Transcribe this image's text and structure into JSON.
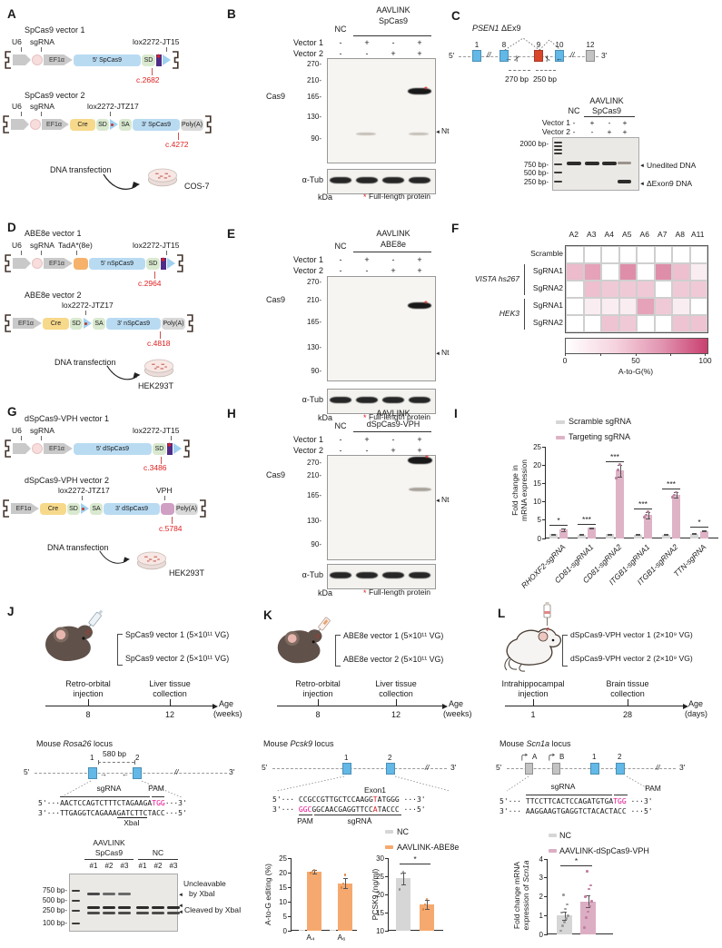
{
  "A": {
    "label": "A",
    "v1_title": "SpCas9 vector 1",
    "v2_title": "SpCas9 vector 2",
    "u6": "U6",
    "sgrna": "sgRNA",
    "ef1a": "EF1α",
    "lox1": "lox2272-JT15",
    "lox2": "lox2272-JTZ17",
    "gene5": "5' SpCas9",
    "gene3": "3' SpCas9",
    "sd": "SD",
    "sa": "SA",
    "cre": "Cre",
    "polya": "Poly(A)",
    "variant1": "c.2682",
    "variant2": "c.4272",
    "transfection": "DNA transfection",
    "cell": "COS-7"
  },
  "B": {
    "label": "B",
    "nc": "NC",
    "treat_line1": "AAVLINK",
    "treat_line2": "SpCas9",
    "v1": "Vector 1",
    "v2": "Vector 2",
    "v1_signs": [
      "-",
      "+",
      "-",
      "+"
    ],
    "v2_signs": [
      "-",
      "-",
      "+",
      "+"
    ],
    "ladder": [
      "270",
      "210",
      "165",
      "130",
      "90"
    ],
    "cas9": "Cas9",
    "nt": "Nt",
    "atub": "α-Tub",
    "kda": "kDa",
    "star": "*",
    "full_note": "Full-length protein"
  },
  "C": {
    "label": "C",
    "title_gene": "PSEN1",
    "title_suffix": " ΔEx9",
    "five": "5'",
    "three": "3'",
    "exon_nums": [
      "1",
      "8",
      "9",
      "10",
      "12"
    ],
    "bp_left": "270 bp",
    "bp_right": "250 bp",
    "nc": "NC",
    "treat_line1": "AAVLINK",
    "treat_line2": "SpCas9",
    "v1": "Vector 1",
    "v2": "Vector 2",
    "v1_signs": [
      "-",
      "+",
      "-",
      "+"
    ],
    "v2_signs": [
      "-",
      "-",
      "+",
      "+"
    ],
    "ladder": [
      "2000 bp",
      "750 bp",
      "500 bp",
      "250 bp"
    ],
    "unedited": "Unedited DNA",
    "dexon9": "ΔExon9 DNA"
  },
  "D": {
    "label": "D",
    "v1_title": "ABE8e vector 1",
    "v2_title": "ABE8e vector 2",
    "u6": "U6",
    "sgrna": "sgRNA",
    "tada": "TadA*(8e)",
    "ef1a": "EF1α",
    "lox1": "lox2272-JT15",
    "lox2": "lox2272-JTZ17",
    "gene5": "5' nSpCas9",
    "gene3": "3' nSpCas9",
    "sd": "SD",
    "sa": "SA",
    "cre": "Cre",
    "polya": "Poly(A)",
    "variant1": "c.2964",
    "variant2": "c.4818",
    "transfection": "DNA transfection",
    "cell": "HEK293T"
  },
  "E": {
    "label": "E",
    "nc": "NC",
    "treat_line1": "AAVLINK",
    "treat_line2": "ABE8e",
    "v1": "Vector 1",
    "v2": "Vector 2",
    "v1_signs": [
      "-",
      "+",
      "-",
      "+"
    ],
    "v2_signs": [
      "-",
      "-",
      "+",
      "+"
    ],
    "ladder": [
      "270",
      "210",
      "165",
      "130",
      "90"
    ],
    "cas9": "Cas9",
    "nt": "Nt",
    "atub": "α-Tub",
    "kda": "kDa",
    "star": "*",
    "full_note": "Full-length protein"
  },
  "F": {
    "label": "F"
  },
  "G": {
    "label": "G",
    "v1_title": "dSpCas9-VPH vector 1",
    "v2_title": "dSpCas9-VPH vector 2",
    "u6": "U6",
    "sgrna": "sgRNA",
    "ef1a": "EF1α",
    "lox1": "lox2272-JT15",
    "lox2": "lox2272-JTZ17",
    "gene5": "5' dSpCas9",
    "gene3": "3' dSpCas9",
    "sd": "SD",
    "sa": "SA",
    "cre": "Cre",
    "vph": "VPH",
    "polya": "Poly(A)",
    "variant1": "c.3486",
    "variant2": "c.5784",
    "transfection": "DNA transfection",
    "cell": "HEK293T"
  },
  "H": {
    "label": "H",
    "nc": "NC",
    "treat_line1": "AAVLINK",
    "treat_line2": "dSpCas9-VPH",
    "v1": "Vector 1",
    "v2": "Vector 2",
    "v1_signs": [
      "-",
      "+",
      "-",
      "+"
    ],
    "v2_signs": [
      "-",
      "-",
      "+",
      "+"
    ],
    "ladder": [
      "270",
      "210",
      "165",
      "130",
      "90"
    ],
    "cas9": "Cas9",
    "nt": "Nt",
    "atub": "α-Tub",
    "kda": "kDa",
    "star": "*",
    "full_note": "Full-length protein"
  },
  "I": {
    "label": "I"
  },
  "J": {
    "label": "J",
    "vec1": "SpCas9 vector 1 (5×10¹¹ VG)",
    "vec2": "SpCas9 vector 2 (5×10¹¹ VG)",
    "ev1a": "Retro-orbital",
    "ev1b": "injection",
    "ev2a": "Liver tissue",
    "ev2b": "collection",
    "t1": "8",
    "t2": "12",
    "axis1": "Age",
    "axis2": "(weeks)",
    "locus_pre": "Mouse ",
    "locus_gene": "Rosa26",
    "locus_post": " locus",
    "bp580": "580 bp",
    "five": "5'",
    "three": "3'",
    "exon1": "1",
    "exon2": "2",
    "sgrna_label": "sgRNA",
    "pam_label": "PAM",
    "xbai": "XbaI",
    "seq_top": [
      {
        "t": "5'···"
      },
      {
        "t": "AACTCCAGTCTTTCTAGAAGA"
      },
      {
        "t": "TGG",
        "c": "pam"
      },
      {
        "t": "···3'"
      }
    ],
    "seq_bot": [
      {
        "t": "3'···"
      },
      {
        "t": "TTGAGGTCAGAAA"
      },
      {
        "t": "GATCTTC",
        "u": true
      },
      {
        "t": "TACC"
      },
      {
        "t": "···5'"
      }
    ],
    "gel_treat1": "AAVLINK",
    "gel_treat2": "SpCas9",
    "gel_nc": "NC",
    "gel_lanes": [
      "#1",
      "#2",
      "#3",
      "#1",
      "#2",
      "#3"
    ],
    "gel_ladder": [
      "750 bp",
      "500 bp",
      "250 bp",
      "100 bp"
    ],
    "ann_unc1": "Uncleavable",
    "ann_unc2": "by XbaI",
    "ann_cle": "Cleaved by XbaI"
  },
  "K": {
    "label": "K",
    "vec1": "ABE8e vector 1 (5×10¹¹ VG)",
    "vec2": "ABE8e vector 2 (5×10¹¹ VG)",
    "ev1a": "Retro-orbital",
    "ev1b": "injection",
    "ev2a": "Liver tissue",
    "ev2b": "collection",
    "t1": "8",
    "t2": "12",
    "axis1": "Age",
    "axis2": "(weeks)",
    "locus_pre": "Mouse ",
    "locus_gene": "Pcsk9",
    "locus_post": " locus",
    "five": "5'",
    "three": "3'",
    "exon1": "1",
    "exon2": "2",
    "exon1_label": "Exon1",
    "sgrna_label": "sgRNA",
    "pam_label": "PAM",
    "seq_top": [
      {
        "t": "5'··· "
      },
      {
        "t": "CCGCCGTTGCTCCAAGG"
      },
      {
        "t": "T",
        "c": "redbase"
      },
      {
        "t": "ATGGG"
      },
      {
        "t": " ···3'"
      }
    ],
    "seq_bot": [
      {
        "t": "3'··· "
      },
      {
        "t": "GGC",
        "c": "pam"
      },
      {
        "t": "GGCAACGAGGTTCC"
      },
      {
        "t": "A",
        "c": "redbase"
      },
      {
        "t": "TACCC"
      },
      {
        "t": " ···5'"
      }
    ],
    "sig": "*"
  },
  "L": {
    "label": "L",
    "vec1": "dSpCas9-VPH vector 1 (2×10⁹ VG)",
    "vec2": "dSpCas9-VPH vector 2 (2×10⁹ VG)",
    "ev1a": "Intrahippocampal",
    "ev1b": "injection",
    "ev2a": "Brain tissue",
    "ev2b": "collection",
    "t1": "1",
    "t2": "28",
    "axis1": "Age",
    "axis2": "(days)",
    "locus_pre": "Mouse ",
    "locus_gene": "Scn1a",
    "locus_post": " locus",
    "five": "5'",
    "three": "3'",
    "exA": "A",
    "exB": "B",
    "exon1": "1",
    "exon2": "2",
    "sgrna_label": "sgRNA",
    "pam_label": "PAM",
    "seq_top": [
      {
        "t": "5'··· "
      },
      {
        "t": "TTCCTTCACTCCAGATGTGA"
      },
      {
        "t": "TGG",
        "c": "pam"
      },
      {
        "t": " ···3'"
      }
    ],
    "seq_bot": [
      {
        "t": "3'··· "
      },
      {
        "t": "AAGGAAGTGAGGTCTACACTACC"
      },
      {
        "t": " ···5'"
      }
    ],
    "yl1": "Fold change mRNA",
    "yl2_pre": "expression of ",
    "yl2_gene": "Scn1a",
    "sig": "*"
  },
  "chart_data": [
    {
      "id": "F",
      "type": "heatmap",
      "columns": [
        "A2",
        "A3",
        "A4",
        "A5",
        "A6",
        "A7",
        "A8",
        "A11"
      ],
      "rows": [
        "Scramble",
        "SgRNA1",
        "SgRNA2",
        "SgRNA1",
        "SgRNA2"
      ],
      "row_groups": [
        {
          "label": "VISTA hs267",
          "rows": [
            1,
            2
          ]
        },
        {
          "label": "HEK3",
          "rows": [
            3,
            4
          ]
        }
      ],
      "values": [
        [
          0,
          0,
          0,
          0,
          0,
          0,
          0,
          0
        ],
        [
          18,
          30,
          0,
          42,
          0,
          42,
          16,
          2
        ],
        [
          0,
          16,
          12,
          12,
          12,
          0,
          12,
          12
        ],
        [
          0,
          2,
          2,
          2,
          30,
          12,
          2,
          0
        ],
        [
          0,
          0,
          14,
          12,
          0,
          0,
          14,
          14
        ]
      ],
      "scale": {
        "min": 0,
        "max": 100,
        "label": "A-to-G(%)",
        "ticks": [
          "0",
          "50",
          "100"
        ],
        "color_max": "#c9406f"
      }
    },
    {
      "id": "I",
      "type": "bar",
      "categories": [
        "RHOXF2-sgRNA",
        "CD81-sgRNA1",
        "CD81-sgRNA2",
        "ITGB1-sgRNA1",
        "ITGB1-sgRNA2",
        "TTN-sgRNA"
      ],
      "series": [
        {
          "name": "Scramble sgRNA",
          "color": "#d6d6d6",
          "values": [
            1.2,
            1.1,
            1.2,
            1.1,
            1.1,
            1.3
          ],
          "err": [
            0.15,
            0.1,
            0.15,
            0.1,
            0.1,
            0.15
          ]
        },
        {
          "name": "Targeting sgRNA",
          "color": "#dfb3c6",
          "values": [
            2.4,
            2.9,
            18.5,
            6.4,
            11.9,
            2.1
          ],
          "err": [
            0.3,
            0.15,
            1.6,
            0.9,
            0.7,
            0.2
          ],
          "points": [
            null,
            null,
            [
              16.5,
              18.7,
              20.2
            ],
            [
              5.8,
              6.4,
              7.3
            ],
            [
              11.2,
              11.9,
              12.6
            ],
            null
          ]
        }
      ],
      "sig": [
        "*",
        "***",
        "***",
        "***",
        "***",
        "*"
      ],
      "ylabel": [
        "Fold change in",
        "mRNA expression"
      ],
      "ylim": [
        0,
        25
      ],
      "yticks": [
        0,
        5,
        10,
        15,
        20,
        25
      ]
    },
    {
      "id": "K1",
      "type": "bar",
      "categories": [
        "A₄",
        "A₆"
      ],
      "series": [
        {
          "name": "NC",
          "color": "#d6d6d6",
          "values": [
            0.2,
            0.2
          ],
          "err": [
            0,
            0
          ]
        },
        {
          "name": "AAVLINK-ABE8e",
          "color": "#f6a96e",
          "values": [
            20.4,
            16.4
          ],
          "err": [
            0.6,
            1.6
          ],
          "points": [
            [
              19.9,
              20.3,
              21.0
            ],
            [
              14.9,
              16.3,
              19.2
            ]
          ]
        }
      ],
      "ylabel": "A-to-G editing (%)",
      "ylim": [
        0,
        25
      ],
      "yticks": [
        0,
        5,
        10,
        15,
        20,
        25
      ]
    },
    {
      "id": "K2",
      "type": "bar",
      "categories": [
        "NC",
        "AAVLINK-ABE8e"
      ],
      "bars": [
        {
          "name": "NC",
          "color": "#d6d6d6",
          "value": 24.4,
          "err": 1.7,
          "points": [
            21.4,
            25.8,
            26.2
          ]
        },
        {
          "name": "AAVLINK-ABE8e",
          "color": "#f6a96e",
          "value": 17.3,
          "err": 1.2,
          "points": [
            15.9,
            17.2,
            18.7
          ]
        }
      ],
      "sig": "*",
      "ylabel": "PCSK9 (ng/ml)",
      "ylim": [
        10,
        30
      ],
      "yticks": [
        10,
        15,
        20,
        25,
        30
      ]
    },
    {
      "id": "L1",
      "type": "bar",
      "categories": [
        "NC",
        "AAVLINK-dSpCas9-VPH"
      ],
      "bars": [
        {
          "name": "NC",
          "color": "#d6d6d6",
          "value": 1.0,
          "err": 0.22,
          "points": [
            0.2,
            0.45,
            0.65,
            0.85,
            1.0,
            1.15,
            1.35,
            1.6,
            2.1
          ]
        },
        {
          "name": "AAVLINK-dSpCas9-VPH",
          "color": "#dcaec4",
          "value": 1.75,
          "err": 0.3,
          "points": [
            0.35,
            0.9,
            1.2,
            1.5,
            1.75,
            2.0,
            2.4,
            2.6,
            3.35
          ]
        }
      ],
      "sig": "*",
      "ylabel": [
        "Fold change mRNA",
        "expression of Scn1a"
      ],
      "ylim": [
        0,
        4
      ],
      "yticks": [
        0,
        1,
        2,
        3,
        4
      ]
    }
  ]
}
